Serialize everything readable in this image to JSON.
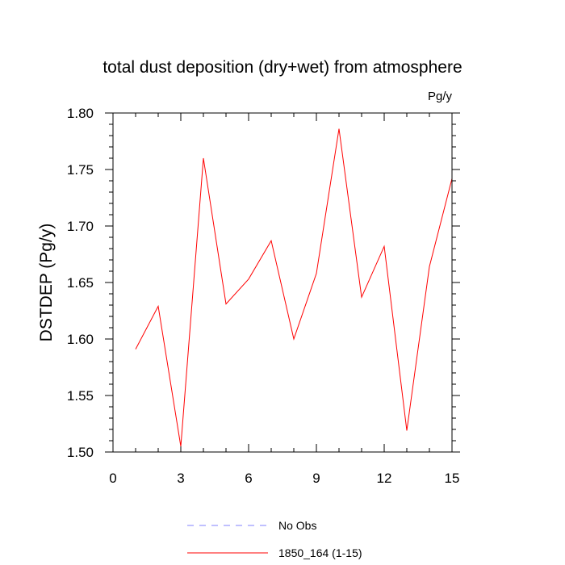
{
  "chart_data": {
    "type": "line",
    "title": "total dust deposition (dry+wet) from atmosphere",
    "units_label": "Pg/y",
    "ylabel": "DSTDEP  (Pg/y)",
    "xlabel": "",
    "xlim": [
      0,
      15
    ],
    "ylim": [
      1.5,
      1.8
    ],
    "xticks": [
      "0",
      "3",
      "6",
      "9",
      "12",
      "15"
    ],
    "xtick_values": [
      0,
      3,
      6,
      9,
      12,
      15
    ],
    "yticks": [
      "1.50",
      "1.55",
      "1.60",
      "1.65",
      "1.70",
      "1.75",
      "1.80"
    ],
    "ytick_values": [
      1.5,
      1.55,
      1.6,
      1.65,
      1.7,
      1.75,
      1.8
    ],
    "grid": false,
    "legend_position": "bottom-center",
    "series": [
      {
        "name": "1850_164 (1-15)",
        "color": "#ff0000",
        "style": "solid",
        "x": [
          1,
          2,
          3,
          4,
          5,
          6,
          7,
          8,
          9,
          10,
          11,
          12,
          13,
          14,
          15
        ],
        "values": [
          1.591,
          1.629,
          1.505,
          1.76,
          1.631,
          1.653,
          1.687,
          1.6,
          1.658,
          1.786,
          1.637,
          1.682,
          1.519,
          1.664,
          1.742
        ]
      }
    ],
    "legend": [
      {
        "name": "No Obs",
        "color": "#8080ff",
        "style": "dashed"
      },
      {
        "name": "1850_164 (1-15)",
        "color": "#ff0000",
        "style": "solid"
      }
    ]
  }
}
